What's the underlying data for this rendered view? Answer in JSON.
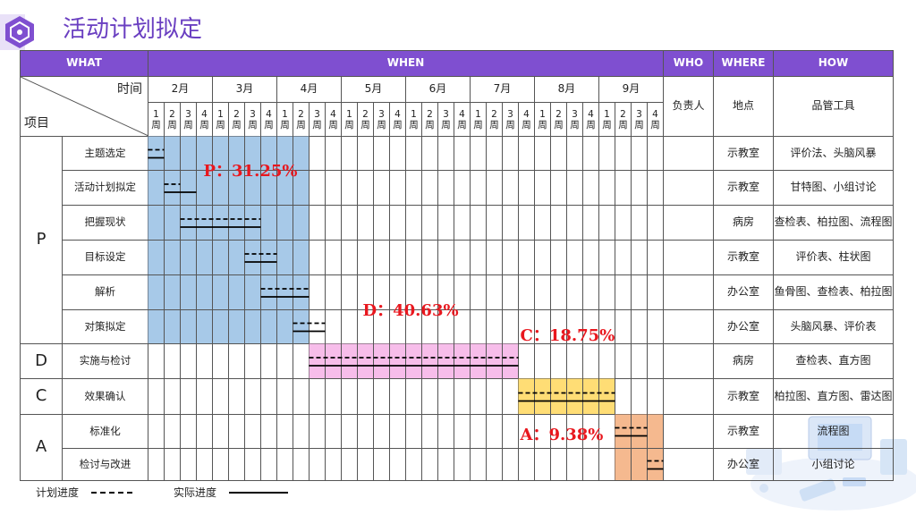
{
  "title": "活动计划拟定",
  "header": {
    "what": "WHAT",
    "when": "WHEN",
    "who": "WHO",
    "where": "WHERE",
    "how": "HOW"
  },
  "corner": {
    "time": "时间",
    "item": "项目"
  },
  "months": [
    "2月",
    "3月",
    "4月",
    "5月",
    "6月",
    "7月",
    "8月",
    "9月"
  ],
  "weeks": [
    "1周",
    "2周",
    "3周",
    "4周"
  ],
  "subheaders": {
    "who": "负责人",
    "where": "地点",
    "how": "品管工具"
  },
  "phases": [
    {
      "label": "P",
      "rows": [
        {
          "task": "主题选定",
          "where": "示教室",
          "how": "评价法、头脑风暴",
          "plan": [
            1,
            1
          ],
          "actual": [
            1,
            1
          ]
        },
        {
          "task": "活动计划拟定",
          "where": "示教室",
          "how": "甘特图、小组讨论",
          "plan": [
            2,
            2
          ],
          "actual": [
            2,
            3
          ]
        },
        {
          "task": "把握现状",
          "where": "病房",
          "how": "查检表、柏拉图、流程图",
          "plan": [
            3,
            7
          ],
          "actual": [
            3,
            7
          ]
        },
        {
          "task": "目标设定",
          "where": "示教室",
          "how": "评价表、柱状图",
          "plan": [
            7,
            8
          ],
          "actual": [
            7,
            8
          ]
        },
        {
          "task": "解析",
          "where": "办公室",
          "how": "鱼骨图、查检表、柏拉图",
          "plan": [
            8,
            10
          ],
          "actual": [
            8,
            10
          ]
        },
        {
          "task": "对策拟定",
          "where": "办公室",
          "how": "头脑风暴、评价表",
          "plan": [
            10,
            11
          ],
          "actual": [
            10,
            11
          ]
        }
      ]
    },
    {
      "label": "D",
      "rows": [
        {
          "task": "实施与检讨",
          "where": "病房",
          "how": "查检表、直方图",
          "plan": [
            11,
            23
          ],
          "actual": [
            11,
            23
          ]
        }
      ]
    },
    {
      "label": "C",
      "rows": [
        {
          "task": "效果确认",
          "where": "示教室",
          "how": "柏拉图、直方图、雷达图",
          "plan": [
            24,
            29
          ],
          "actual": [
            24,
            29
          ]
        }
      ]
    },
    {
      "label": "A",
      "rows": [
        {
          "task": "标准化",
          "where": "示教室",
          "how": "流程图",
          "plan": [
            30,
            31
          ],
          "actual": [
            30,
            31
          ]
        },
        {
          "task": "检讨与改进",
          "where": "办公室",
          "how": "小组讨论",
          "plan": [
            32,
            32
          ],
          "actual": [
            32,
            32
          ]
        }
      ]
    }
  ],
  "phase_blocks": [
    {
      "phase": "P",
      "weeks": [
        1,
        10
      ],
      "rows": [
        0,
        5
      ],
      "color": "#9dc3e6",
      "label": "P：31.25%"
    },
    {
      "phase": "D",
      "weeks": [
        11,
        23
      ],
      "rows": [
        6,
        6
      ],
      "color": "#f6b6e8",
      "label": "D：40.63%"
    },
    {
      "phase": "C",
      "weeks": [
        24,
        29
      ],
      "rows": [
        7,
        7
      ],
      "color": "#ffd966",
      "label": "C：18.75%"
    },
    {
      "phase": "A",
      "weeks": [
        30,
        32
      ],
      "rows": [
        8,
        9
      ],
      "color": "#f4b183",
      "label": "A：9.38%"
    }
  ],
  "legend": {
    "plan": "计划进度",
    "actual": "实际进度"
  }
}
